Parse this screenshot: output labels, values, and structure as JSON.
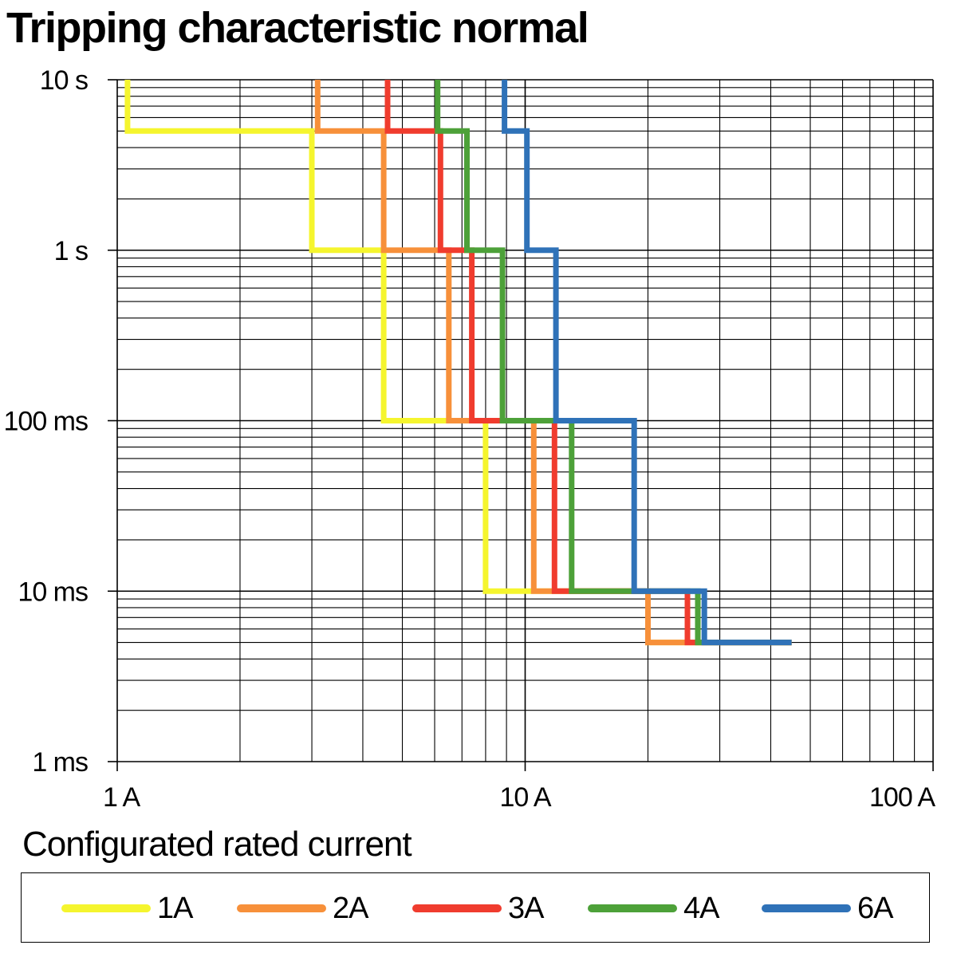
{
  "title": "Tripping characteristic normal",
  "legend_title": "Configurated rated current",
  "chart_data": {
    "type": "line",
    "title": "Tripping characteristic normal",
    "xlabel": "",
    "ylabel": "",
    "x_scale": "log",
    "y_scale": "log",
    "x_unit": "A",
    "y_unit": "s",
    "xlim": [
      1,
      100
    ],
    "ylim": [
      0.001,
      10
    ],
    "grid": true,
    "legend_position": "bottom",
    "x_ticks": [
      {
        "value": 1,
        "label": "1 A"
      },
      {
        "value": 10,
        "label": "10 A"
      },
      {
        "value": 100,
        "label": "100 A"
      }
    ],
    "y_ticks": [
      {
        "value": 10,
        "label": "10 s"
      },
      {
        "value": 1,
        "label": "1 s"
      },
      {
        "value": 0.1,
        "label": "100 ms"
      },
      {
        "value": 0.01,
        "label": "10 ms"
      },
      {
        "value": 0.001,
        "label": "1 ms"
      }
    ],
    "series": [
      {
        "name": "1A",
        "color": "#f5f52e",
        "points": [
          [
            1.06,
            10
          ],
          [
            1.06,
            5
          ],
          [
            3,
            5
          ],
          [
            3,
            1
          ],
          [
            4.5,
            1
          ],
          [
            4.5,
            0.1
          ],
          [
            8,
            0.1
          ],
          [
            8,
            0.01
          ],
          [
            20,
            0.01
          ],
          [
            20,
            0.005
          ],
          [
            45,
            0.005
          ]
        ]
      },
      {
        "name": "2A",
        "color": "#f7903a",
        "points": [
          [
            3.1,
            10
          ],
          [
            3.1,
            5
          ],
          [
            4.5,
            5
          ],
          [
            4.5,
            1
          ],
          [
            6.5,
            1
          ],
          [
            6.5,
            0.1
          ],
          [
            10.5,
            0.1
          ],
          [
            10.5,
            0.01
          ],
          [
            20,
            0.01
          ],
          [
            20,
            0.005
          ],
          [
            45,
            0.005
          ]
        ]
      },
      {
        "name": "3A",
        "color": "#f03c2e",
        "points": [
          [
            4.6,
            10
          ],
          [
            4.6,
            5
          ],
          [
            6.2,
            5
          ],
          [
            6.2,
            1
          ],
          [
            7.4,
            1
          ],
          [
            7.4,
            0.1
          ],
          [
            11.8,
            0.1
          ],
          [
            11.8,
            0.01
          ],
          [
            25,
            0.01
          ],
          [
            25,
            0.005
          ],
          [
            45,
            0.005
          ]
        ]
      },
      {
        "name": "4A",
        "color": "#4da139",
        "points": [
          [
            6.1,
            10
          ],
          [
            6.1,
            5
          ],
          [
            7.2,
            5
          ],
          [
            7.2,
            1
          ],
          [
            8.8,
            1
          ],
          [
            8.8,
            0.1
          ],
          [
            13,
            0.1
          ],
          [
            13,
            0.01
          ],
          [
            26.5,
            0.01
          ],
          [
            26.5,
            0.005
          ],
          [
            45,
            0.005
          ]
        ]
      },
      {
        "name": "6A",
        "color": "#2f72b8",
        "points": [
          [
            8.9,
            10
          ],
          [
            8.9,
            5
          ],
          [
            10.1,
            5
          ],
          [
            10.1,
            1
          ],
          [
            11.9,
            1
          ],
          [
            11.9,
            0.1
          ],
          [
            18.5,
            0.1
          ],
          [
            18.5,
            0.01
          ],
          [
            27.5,
            0.01
          ],
          [
            27.5,
            0.005
          ],
          [
            45,
            0.005
          ]
        ]
      }
    ]
  }
}
